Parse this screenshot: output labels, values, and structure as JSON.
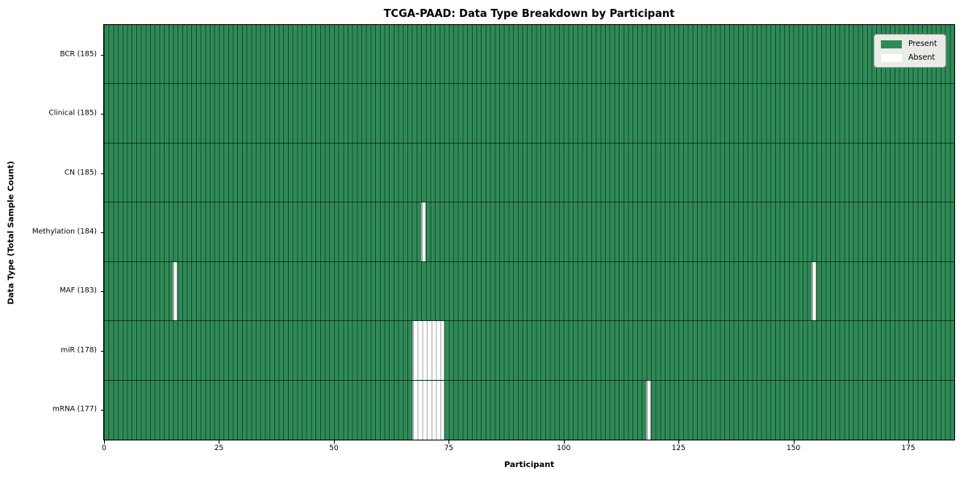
{
  "chart_data": {
    "type": "heatmap",
    "title": "TCGA-PAAD: Data Type Breakdown by Participant",
    "xlabel": "Participant",
    "ylabel": "Data Type (Total Sample Count)",
    "x_ticks": [
      0,
      25,
      50,
      75,
      100,
      125,
      150,
      175
    ],
    "x_range": [
      0,
      185
    ],
    "n_participants": 185,
    "legend_position": "upper-right",
    "legend": [
      {
        "label": "Present",
        "color": "#2e8b57"
      },
      {
        "label": "Absent",
        "color": "#ffffff"
      }
    ],
    "rows": [
      {
        "label": "BCR (185)",
        "data_type": "BCR",
        "total_samples": 185,
        "absent_participants": []
      },
      {
        "label": "Clinical (185)",
        "data_type": "Clinical",
        "total_samples": 185,
        "absent_participants": []
      },
      {
        "label": "CN (185)",
        "data_type": "CN",
        "total_samples": 185,
        "absent_participants": []
      },
      {
        "label": "Methylation (184)",
        "data_type": "Methylation",
        "total_samples": 184,
        "absent_participants": [
          69
        ]
      },
      {
        "label": "MAF (183)",
        "data_type": "MAF",
        "total_samples": 183,
        "absent_participants": [
          15,
          154
        ]
      },
      {
        "label": "miR (178)",
        "data_type": "miR",
        "total_samples": 178,
        "absent_participants": [
          67,
          68,
          69,
          70,
          71,
          72,
          73
        ]
      },
      {
        "label": "mRNA (177)",
        "data_type": "mRNA",
        "total_samples": 177,
        "absent_participants": [
          67,
          68,
          69,
          70,
          71,
          72,
          73,
          118
        ]
      }
    ],
    "colors": {
      "present": "#2e8b57",
      "absent": "#ffffff",
      "cell_edge": "rgba(0,0,0,0.45)",
      "row_edge": "rgba(0,0,0,0.55)",
      "absent_edge": "#aaaaaa"
    }
  }
}
